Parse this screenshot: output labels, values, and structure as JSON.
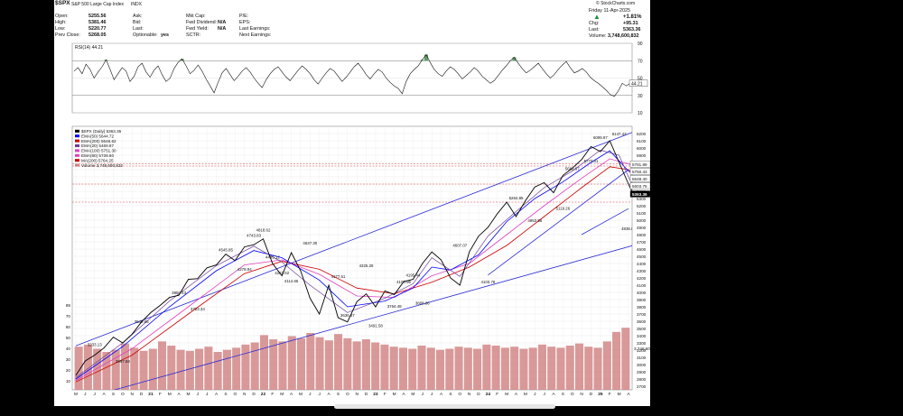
{
  "header": {
    "symbol": "$SPX",
    "description": "S&P 500 Large Cap Index",
    "exchange": "INDX",
    "credit": "© StockCharts.com",
    "date": "Friday  11-Apr-2025",
    "quote": [
      {
        "label": "Open:",
        "value": "5255.56"
      },
      {
        "label": "High:",
        "value": "5381.46"
      },
      {
        "label": "Low:",
        "value": "5220.77"
      },
      {
        "label": "Prev Close:",
        "value": "5268.05"
      }
    ],
    "col2": [
      {
        "label": "Ask:",
        "value": ""
      },
      {
        "label": "Bid:",
        "value": ""
      },
      {
        "label": "Last:",
        "value": ""
      },
      {
        "label": "Optionable:",
        "value": "yes"
      }
    ],
    "col3": [
      {
        "label": "Mkt Cap:",
        "value": ""
      },
      {
        "label": "Fwd Dividend:",
        "value": "N/A"
      },
      {
        "label": "Fwd Yield:",
        "value": "N/A"
      },
      {
        "label": "SCTR:",
        "value": ""
      }
    ],
    "col4": [
      {
        "label": "P/E:",
        "value": ""
      },
      {
        "label": "EPS:",
        "value": ""
      },
      {
        "label": "Last Earnings:",
        "value": ""
      },
      {
        "label": "Next Earnings:",
        "value": ""
      }
    ],
    "change_pct": "+1.81%",
    "chg_label": "Chg:",
    "chg_value": "+95.31",
    "last_label": "Last:",
    "last_value": "5363.36",
    "volume_label": "Volume:",
    "volume_value": "3,748,600,832"
  },
  "colors": {
    "price": "#000000",
    "trendline": "#2b2bd6",
    "ema50": "#0000ff",
    "ema200": "#cc0000",
    "ema20": "#6a3d9a",
    "ema100": "#e040c0",
    "volume": "#d08080",
    "hline": "#d04040",
    "rsi_fill": "#2e7d32"
  },
  "chart_data": [
    {
      "panel": "rsi",
      "type": "line",
      "title": "RSI(14) 44.21",
      "ylim": [
        10,
        90
      ],
      "yticks": [
        90,
        70,
        50,
        30,
        10
      ],
      "overbought": 70,
      "oversold": 30,
      "last_value": "44.21",
      "values": [
        58,
        62,
        55,
        66,
        60,
        50,
        57,
        63,
        71,
        60,
        48,
        55,
        62,
        58,
        46,
        52,
        63,
        67,
        57,
        51,
        59,
        64,
        54,
        46,
        50,
        61,
        68,
        72,
        64,
        55,
        59,
        65,
        58,
        49,
        41,
        33,
        45,
        56,
        61,
        54,
        47,
        52,
        58,
        62,
        57,
        50,
        44,
        39,
        48,
        55,
        60,
        63,
        57,
        51,
        47,
        53,
        59,
        64,
        60,
        55,
        48,
        43,
        50,
        56,
        61,
        58,
        52,
        46,
        51,
        57,
        63,
        67,
        61,
        54,
        49,
        55,
        60,
        57,
        50,
        45,
        41,
        38,
        32,
        46,
        55,
        60,
        64,
        71,
        77,
        68,
        60,
        55,
        52,
        58,
        63,
        60,
        55,
        49,
        53,
        57,
        62,
        58,
        52,
        48,
        44,
        47,
        53,
        59,
        64,
        70,
        74,
        67,
        61,
        56,
        59,
        63,
        67,
        61,
        55,
        50,
        54,
        60,
        65,
        69,
        62,
        56,
        58,
        61,
        57,
        51,
        47,
        44,
        40,
        36,
        31,
        29,
        35,
        44,
        41,
        44
      ]
    },
    {
      "panel": "price",
      "type": "line",
      "title": "$SPX (Daily) 5363.36",
      "ylim": [
        2650,
        6300
      ],
      "yticks": [
        6200,
        6100,
        6000,
        5900,
        5800,
        5700,
        5600,
        5500,
        5400,
        5300,
        5200,
        5100,
        5000,
        4900,
        4800,
        4700,
        4600,
        4500,
        4400,
        4300,
        4200,
        4100,
        4000,
        3900,
        3800,
        3700,
        3600,
        3500,
        3400,
        3300,
        3200,
        3100,
        3000,
        2900,
        2800,
        2700
      ],
      "months": [
        "M",
        "J",
        "J",
        "A",
        "S",
        "O",
        "N",
        "D",
        "21",
        "F",
        "M",
        "A",
        "M",
        "J",
        "J",
        "A",
        "S",
        "O",
        "N",
        "D",
        "22",
        "F",
        "M",
        "A",
        "M",
        "J",
        "J",
        "A",
        "S",
        "O",
        "N",
        "D",
        "23",
        "F",
        "M",
        "A",
        "M",
        "J",
        "J",
        "A",
        "S",
        "O",
        "N",
        "D",
        "24",
        "F",
        "M",
        "A",
        "M",
        "J",
        "J",
        "A",
        "S",
        "O",
        "N",
        "D",
        "25",
        "F",
        "M",
        "A"
      ],
      "legend": [
        "$SPX (Daily) 5363.36",
        "EMA(50) 5644.72",
        "EMA(200) 5646.62",
        "EMA(20) 5469.87",
        "EMA(100) 5751.30",
        "EMA(80) 5739.60",
        "MA(200) 5764.25",
        "Volume 3,748,600,832"
      ],
      "price": [
        [
          0,
          2850
        ],
        [
          1,
          3050
        ],
        [
          2,
          3130
        ],
        [
          3,
          3230
        ],
        [
          4,
          3380
        ],
        [
          5,
          3300
        ],
        [
          6,
          3420
        ],
        [
          7,
          3590
        ],
        [
          8,
          3720
        ],
        [
          9,
          3820
        ],
        [
          10,
          3930
        ],
        [
          11,
          3960
        ],
        [
          12,
          4180
        ],
        [
          13,
          4190
        ],
        [
          14,
          4340
        ],
        [
          15,
          4380
        ],
        [
          16,
          4530
        ],
        [
          17,
          4440
        ],
        [
          18,
          4630
        ],
        [
          19,
          4660
        ],
        [
          20,
          4740
        ],
        [
          21,
          4400
        ],
        [
          22,
          4230
        ],
        [
          23,
          4550
        ],
        [
          24,
          4300
        ],
        [
          25,
          3920
        ],
        [
          26,
          3700
        ],
        [
          27,
          4100
        ],
        [
          28,
          3650
        ],
        [
          29,
          3590
        ],
        [
          30,
          3870
        ],
        [
          31,
          3980
        ],
        [
          32,
          3800
        ],
        [
          33,
          4020
        ],
        [
          34,
          3970
        ],
        [
          35,
          4150
        ],
        [
          36,
          4180
        ],
        [
          37,
          4400
        ],
        [
          38,
          4560
        ],
        [
          39,
          4450
        ],
        [
          40,
          4200
        ],
        [
          41,
          4100
        ],
        [
          42,
          4560
        ],
        [
          43,
          4780
        ],
        [
          44,
          4900
        ],
        [
          45,
          5090
        ],
        [
          46,
          5250
        ],
        [
          47,
          5050
        ],
        [
          48,
          5270
        ],
        [
          49,
          5460
        ],
        [
          50,
          5520
        ],
        [
          51,
          5380
        ],
        [
          52,
          5620
        ],
        [
          53,
          5720
        ],
        [
          54,
          5840
        ],
        [
          55,
          6020
        ],
        [
          56,
          5950
        ],
        [
          57,
          6100
        ],
        [
          58,
          5800
        ],
        [
          59,
          5500
        ],
        [
          59.5,
          5363
        ]
      ],
      "ema50": [
        [
          0,
          2800
        ],
        [
          5,
          3250
        ],
        [
          10,
          3800
        ],
        [
          15,
          4300
        ],
        [
          19,
          4580
        ],
        [
          22,
          4480
        ],
        [
          26,
          4170
        ],
        [
          29,
          3800
        ],
        [
          33,
          3880
        ],
        [
          36,
          4060
        ],
        [
          38,
          4350
        ],
        [
          40,
          4310
        ],
        [
          43,
          4520
        ],
        [
          46,
          4980
        ],
        [
          49,
          5300
        ],
        [
          52,
          5530
        ],
        [
          55,
          5800
        ],
        [
          57,
          5960
        ],
        [
          59,
          5680
        ],
        [
          59.5,
          5640
        ]
      ],
      "ema200": [
        [
          0,
          2760
        ],
        [
          6,
          3130
        ],
        [
          12,
          3700
        ],
        [
          18,
          4260
        ],
        [
          22,
          4430
        ],
        [
          26,
          4320
        ],
        [
          30,
          4060
        ],
        [
          34,
          3980
        ],
        [
          38,
          4140
        ],
        [
          42,
          4350
        ],
        [
          46,
          4650
        ],
        [
          50,
          5050
        ],
        [
          54,
          5450
        ],
        [
          57,
          5740
        ],
        [
          59,
          5700
        ],
        [
          59.5,
          5646
        ]
      ],
      "ema20": [
        [
          0,
          2820
        ],
        [
          5,
          3300
        ],
        [
          10,
          3880
        ],
        [
          15,
          4370
        ],
        [
          19,
          4640
        ],
        [
          22,
          4420
        ],
        [
          25,
          4100
        ],
        [
          29,
          3720
        ],
        [
          33,
          3920
        ],
        [
          36,
          4120
        ],
        [
          38,
          4480
        ],
        [
          41,
          4220
        ],
        [
          44,
          4780
        ],
        [
          47,
          5120
        ],
        [
          50,
          5450
        ],
        [
          53,
          5680
        ],
        [
          56,
          5970
        ],
        [
          58,
          5900
        ],
        [
          59,
          5600
        ],
        [
          59.5,
          5470
        ]
      ],
      "ema100": [
        [
          0,
          2780
        ],
        [
          6,
          3220
        ],
        [
          12,
          3800
        ],
        [
          18,
          4380
        ],
        [
          22,
          4450
        ],
        [
          26,
          4250
        ],
        [
          30,
          3950
        ],
        [
          34,
          3930
        ],
        [
          38,
          4230
        ],
        [
          42,
          4400
        ],
        [
          46,
          4800
        ],
        [
          50,
          5200
        ],
        [
          54,
          5580
        ],
        [
          57,
          5850
        ],
        [
          59,
          5780
        ],
        [
          59.5,
          5751
        ]
      ],
      "trend_lines": [
        [
          [
            0,
            3260
          ],
          [
            59.5,
            6220
          ]
        ],
        [
          [
            0,
            2500
          ],
          [
            59.5,
            4650
          ]
        ],
        [
          [
            44,
            4240
          ],
          [
            59,
            5700
          ]
        ],
        [
          [
            54,
            4800
          ],
          [
            59,
            5160
          ]
        ]
      ],
      "h_lines": [
        5780,
        5750,
        5500,
        5250
      ],
      "annotations": [
        {
          "x": 2,
          "y": 3233,
          "text": "3233.13"
        },
        {
          "x": 5,
          "y": 2997,
          "text": "2997.58"
        },
        {
          "x": 7,
          "y": 3549,
          "text": "3549.85"
        },
        {
          "x": 11,
          "y": 3950,
          "text": "3950.43"
        },
        {
          "x": 13,
          "y": 3723,
          "text": "3723.34"
        },
        {
          "x": 16,
          "y": 4545,
          "text": "4545.85"
        },
        {
          "x": 18,
          "y": 4278,
          "text": "4278.94"
        },
        {
          "x": 19,
          "y": 4743,
          "text": "4743.83"
        },
        {
          "x": 20,
          "y": 4818,
          "text": "4818.62"
        },
        {
          "x": 21,
          "y": 4445,
          "text": "4445.12"
        },
        {
          "x": 22,
          "y": 4222,
          "text": "4222.62"
        },
        {
          "x": 23,
          "y": 4114,
          "text": "4114.65"
        },
        {
          "x": 25,
          "y": 4637,
          "text": "4637.30"
        },
        {
          "x": 28,
          "y": 4177,
          "text": "4177.51"
        },
        {
          "x": 29,
          "y": 3636,
          "text": "3636.87"
        },
        {
          "x": 31,
          "y": 4325,
          "text": "4325.28"
        },
        {
          "x": 32,
          "y": 3491,
          "text": "3491.58"
        },
        {
          "x": 34,
          "y": 3764,
          "text": "3764.49"
        },
        {
          "x": 35,
          "y": 4100,
          "text": "4100.96"
        },
        {
          "x": 36,
          "y": 4195,
          "text": "4195.44"
        },
        {
          "x": 37,
          "y": 3808,
          "text": "3808.86"
        },
        {
          "x": 41,
          "y": 4607,
          "text": "4607.07"
        },
        {
          "x": 44,
          "y": 4103,
          "text": "4103.78"
        },
        {
          "x": 47,
          "y": 5264,
          "text": "5264.85"
        },
        {
          "x": 49,
          "y": 4953,
          "text": "4953.56"
        },
        {
          "x": 52,
          "y": 5119,
          "text": "5119.26"
        },
        {
          "x": 53,
          "y": 5669,
          "text": "5669.67"
        },
        {
          "x": 55,
          "y": 5773,
          "text": "5773.31"
        },
        {
          "x": 56,
          "y": 6099,
          "text": "6099.97"
        },
        {
          "x": 58,
          "y": 6147,
          "text": "6147.43"
        },
        {
          "x": 59,
          "y": 4835,
          "text": "4835.04"
        }
      ],
      "right_labels": [
        "5781.89",
        "5750.43",
        "5648.40",
        "5603.75",
        "5363.36"
      ]
    },
    {
      "panel": "volume",
      "type": "bar",
      "ylim": [
        0,
        6000000000
      ],
      "yticks": [
        "89",
        "70",
        "60",
        "50",
        "40",
        "30",
        "20",
        "10"
      ],
      "label": "3,748,600,832",
      "values": [
        4.1,
        4.3,
        3.9,
        3.6,
        3.8,
        4.4,
        4.0,
        3.7,
        3.9,
        4.6,
        4.2,
        3.8,
        3.7,
        3.9,
        4.1,
        3.6,
        3.8,
        4.0,
        4.3,
        4.5,
        5.2,
        4.8,
        4.6,
        5.1,
        4.9,
        5.4,
        5.0,
        4.7,
        5.3,
        4.9,
        4.6,
        4.8,
        4.5,
        4.3,
        4.1,
        4.0,
        3.9,
        4.2,
        4.0,
        3.8,
        3.9,
        4.1,
        4.0,
        3.9,
        4.3,
        4.2,
        4.0,
        4.1,
        3.9,
        4.0,
        4.3,
        4.1,
        4.0,
        4.2,
        4.4,
        4.1,
        4.0,
        4.6,
        5.5,
        5.9
      ]
    }
  ]
}
